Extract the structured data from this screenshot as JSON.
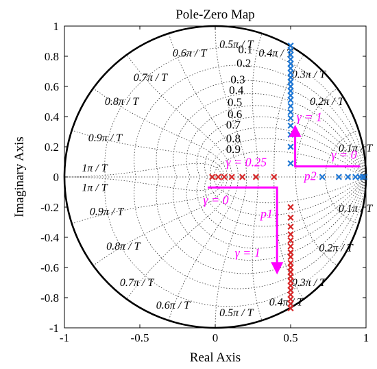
{
  "chart_data": {
    "type": "scatter",
    "title": "Pole-Zero Map",
    "xlabel": "Real Axis",
    "ylabel": "Imaginary Axis",
    "xlim": [
      -1,
      1
    ],
    "ylim": [
      -1,
      1
    ],
    "x_ticks": [
      "-1",
      "-0.5",
      "0",
      "0.5",
      "1"
    ],
    "y_ticks": [
      "1",
      "0.8",
      "0.6",
      "0.4",
      "0.2",
      "0",
      "-0.2",
      "-0.4",
      "-0.6",
      "-0.8",
      "-1"
    ],
    "grid": true,
    "unit_circle": true,
    "damping_labels": [
      "0.1",
      "0.2",
      "0.3",
      "0.4",
      "0.5",
      "0.6",
      "0.7",
      "0.8",
      "0.9"
    ],
    "frequency_labels": {
      "upper": [
        "0.1π / T",
        "0.2π / T",
        "0.3π / T",
        "0.4π / T",
        "0.5π / T",
        "0.6π / T",
        "0.7π / T",
        "0.8π / T",
        "0.9π / T",
        "1π / T"
      ],
      "lower": [
        "0.1π / T",
        "0.2π / T",
        "0.3π / T",
        "0.4π / T",
        "0.5π / T",
        "0.6π / T",
        "0.7π / T",
        "0.8π / T",
        "0.9π / T",
        "1π / T"
      ]
    },
    "series": [
      {
        "color": "#1f77d4",
        "marker": "x",
        "points": [
          [
            0.5,
            0.87
          ],
          [
            0.5,
            0.84
          ],
          [
            0.5,
            0.81
          ],
          [
            0.5,
            0.78
          ],
          [
            0.5,
            0.75
          ],
          [
            0.5,
            0.72
          ],
          [
            0.5,
            0.69
          ],
          [
            0.5,
            0.66
          ],
          [
            0.5,
            0.63
          ],
          [
            0.5,
            0.6
          ],
          [
            0.5,
            0.57
          ],
          [
            0.5,
            0.54
          ],
          [
            0.5,
            0.51
          ],
          [
            0.5,
            0.47
          ],
          [
            0.5,
            0.43
          ],
          [
            0.5,
            0.39
          ],
          [
            0.5,
            0.34
          ],
          [
            0.5,
            0.28
          ],
          [
            0.5,
            0.2
          ],
          [
            0.5,
            0.09
          ],
          [
            0.71,
            0
          ],
          [
            0.82,
            0
          ],
          [
            0.88,
            0
          ],
          [
            0.93,
            0
          ],
          [
            0.96,
            0
          ],
          [
            0.98,
            0
          ],
          [
            0.99,
            0
          ]
        ]
      },
      {
        "color": "#d62728",
        "marker": "x",
        "points": [
          [
            -0.02,
            0
          ],
          [
            0.02,
            0
          ],
          [
            0.06,
            0
          ],
          [
            0.11,
            0
          ],
          [
            0.18,
            0
          ],
          [
            0.27,
            0
          ],
          [
            0.39,
            0
          ],
          [
            0.5,
            -0.2
          ],
          [
            0.5,
            -0.27
          ],
          [
            0.5,
            -0.33
          ],
          [
            0.5,
            -0.38
          ],
          [
            0.5,
            -0.42
          ],
          [
            0.5,
            -0.46
          ],
          [
            0.5,
            -0.5
          ],
          [
            0.5,
            -0.53
          ],
          [
            0.5,
            -0.57
          ],
          [
            0.5,
            -0.6
          ],
          [
            0.5,
            -0.63
          ],
          [
            0.5,
            -0.66
          ],
          [
            0.5,
            -0.69
          ],
          [
            0.5,
            -0.72
          ],
          [
            0.5,
            -0.75
          ],
          [
            0.5,
            -0.78
          ],
          [
            0.5,
            -0.81
          ],
          [
            0.5,
            -0.84
          ],
          [
            0.5,
            -0.87
          ]
        ]
      }
    ],
    "annotations": {
      "color": "#ff00ff",
      "items": [
        {
          "text": "γ = 0.25",
          "x": 0.07,
          "y": 0.07
        },
        {
          "text": "γ = 1",
          "x": 0.54,
          "y": 0.37
        },
        {
          "text": "γ = 0",
          "x": 0.77,
          "y": 0.12
        },
        {
          "text": "p2",
          "x": 0.59,
          "y": -0.02
        },
        {
          "text": "γ = 0",
          "x": -0.08,
          "y": -0.18
        },
        {
          "text": "p1",
          "x": 0.3,
          "y": -0.27
        },
        {
          "text": "γ = 1",
          "x": 0.13,
          "y": -0.53
        }
      ],
      "arrows": [
        {
          "points": [
            [
              0.96,
              0.07
            ],
            [
              0.53,
              0.07
            ],
            [
              0.53,
              0.33
            ]
          ]
        },
        {
          "points": [
            [
              -0.05,
              -0.07
            ],
            [
              0.41,
              -0.07
            ],
            [
              0.41,
              -0.63
            ]
          ]
        }
      ]
    }
  }
}
